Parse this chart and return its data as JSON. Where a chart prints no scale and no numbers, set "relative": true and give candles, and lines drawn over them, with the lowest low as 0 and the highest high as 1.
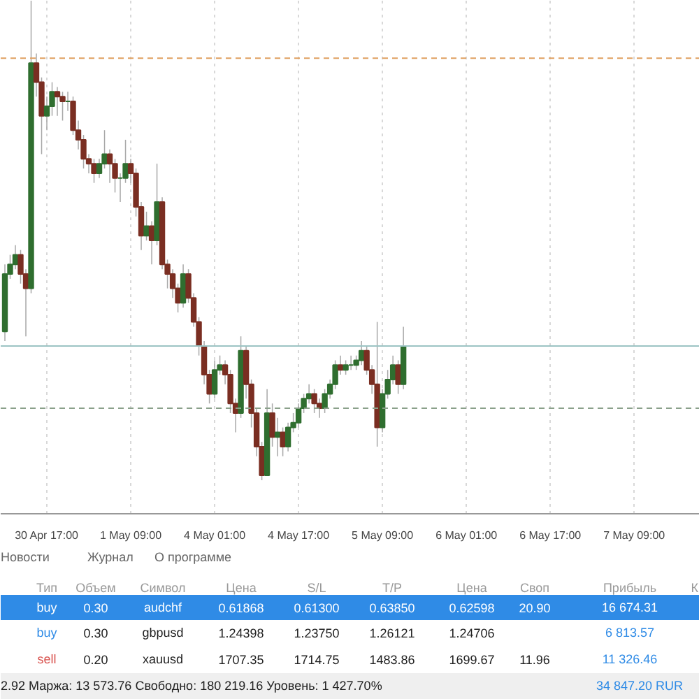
{
  "chart_data": {
    "type": "candlestick",
    "relative": true,
    "categories": [
      null,
      null,
      null,
      null,
      null,
      null,
      null,
      null,
      "30 Apr 17:00",
      null,
      null,
      null,
      null,
      null,
      null,
      null,
      null,
      null,
      null,
      null,
      null,
      null,
      null,
      null,
      "1 May 09:00",
      null,
      null,
      null,
      null,
      null,
      null,
      null,
      null,
      null,
      null,
      null,
      null,
      null,
      null,
      null,
      "4 May 01:00",
      null,
      null,
      null,
      null,
      null,
      null,
      null,
      null,
      null,
      null,
      null,
      null,
      null,
      null,
      null,
      "4 May 17:00",
      null,
      null,
      null,
      null,
      null,
      null,
      null,
      null,
      null,
      null,
      null,
      null,
      null,
      null,
      null,
      "5 May 09:00",
      null,
      null,
      null,
      null,
      null,
      null,
      null,
      null,
      null,
      null,
      null,
      null,
      null,
      null,
      null,
      "6 May 01:00",
      null,
      null,
      null,
      null,
      null,
      null,
      null,
      null,
      null,
      null,
      null,
      null,
      null,
      null,
      null,
      "6 May 17:00",
      null,
      null,
      null,
      null,
      null,
      null,
      null,
      null,
      null,
      null,
      null,
      null,
      null,
      null,
      null,
      "7 May 09:00",
      null,
      null,
      null,
      null,
      null,
      null,
      null,
      null,
      null,
      null,
      null,
      null
    ],
    "ohlc": [
      [
        0.31,
        0.45,
        0.29,
        0.43
      ],
      [
        0.43,
        0.47,
        0.42,
        0.45
      ],
      [
        0.45,
        0.49,
        0.44,
        0.47
      ],
      [
        0.47,
        0.48,
        0.41,
        0.43
      ],
      [
        0.43,
        0.44,
        0.3,
        0.4
      ],
      [
        0.4,
        1.0,
        0.39,
        0.87
      ],
      [
        0.87,
        0.89,
        0.8,
        0.83
      ],
      [
        0.83,
        0.84,
        0.68,
        0.76
      ],
      [
        0.76,
        0.8,
        0.73,
        0.78
      ],
      [
        0.78,
        0.83,
        0.76,
        0.81
      ],
      [
        0.81,
        0.82,
        0.76,
        0.8
      ],
      [
        0.8,
        0.81,
        0.75,
        0.79
      ],
      [
        0.79,
        0.81,
        0.77,
        0.79
      ],
      [
        0.79,
        0.8,
        0.72,
        0.73
      ],
      [
        0.73,
        0.75,
        0.69,
        0.71
      ],
      [
        0.71,
        0.72,
        0.65,
        0.67
      ],
      [
        0.67,
        0.68,
        0.64,
        0.66
      ],
      [
        0.66,
        0.67,
        0.62,
        0.64
      ],
      [
        0.64,
        0.67,
        0.63,
        0.66
      ],
      [
        0.66,
        0.73,
        0.65,
        0.68
      ],
      [
        0.68,
        0.69,
        0.62,
        0.66
      ],
      [
        0.66,
        0.67,
        0.6,
        0.63
      ],
      [
        0.63,
        0.64,
        0.58,
        0.63
      ],
      [
        0.63,
        0.71,
        0.62,
        0.66
      ],
      [
        0.66,
        0.67,
        0.62,
        0.64
      ],
      [
        0.64,
        0.65,
        0.55,
        0.57
      ],
      [
        0.57,
        0.58,
        0.48,
        0.51
      ],
      [
        0.51,
        0.56,
        0.5,
        0.53
      ],
      [
        0.53,
        0.54,
        0.45,
        0.5
      ],
      [
        0.5,
        0.66,
        0.49,
        0.58
      ],
      [
        0.58,
        0.59,
        0.44,
        0.45
      ],
      [
        0.45,
        0.46,
        0.4,
        0.43
      ],
      [
        0.43,
        0.44,
        0.38,
        0.4
      ],
      [
        0.4,
        0.41,
        0.35,
        0.37
      ],
      [
        0.37,
        0.45,
        0.36,
        0.43
      ],
      [
        0.43,
        0.44,
        0.37,
        0.38
      ],
      [
        0.38,
        0.39,
        0.32,
        0.33
      ],
      [
        0.33,
        0.34,
        0.26,
        0.28
      ],
      [
        0.28,
        0.29,
        0.2,
        0.22
      ],
      [
        0.22,
        0.23,
        0.16,
        0.18
      ],
      [
        0.18,
        0.25,
        0.17,
        0.23
      ],
      [
        0.23,
        0.26,
        0.22,
        0.24
      ],
      [
        0.24,
        0.25,
        0.2,
        0.22
      ],
      [
        0.22,
        0.23,
        0.14,
        0.16
      ],
      [
        0.16,
        0.17,
        0.1,
        0.14
      ],
      [
        0.14,
        0.3,
        0.13,
        0.27
      ],
      [
        0.27,
        0.28,
        0.17,
        0.2
      ],
      [
        0.2,
        0.21,
        0.11,
        0.14
      ],
      [
        0.14,
        0.15,
        0.05,
        0.07
      ],
      [
        0.07,
        0.08,
        0.0,
        0.01
      ],
      [
        0.01,
        0.19,
        0.01,
        0.14
      ],
      [
        0.14,
        0.16,
        0.07,
        0.09
      ],
      [
        0.09,
        0.13,
        0.05,
        0.1
      ],
      [
        0.1,
        0.11,
        0.05,
        0.07
      ],
      [
        0.07,
        0.12,
        0.06,
        0.11
      ],
      [
        0.11,
        0.14,
        0.1,
        0.12
      ],
      [
        0.12,
        0.16,
        0.11,
        0.15
      ],
      [
        0.15,
        0.18,
        0.14,
        0.17
      ],
      [
        0.17,
        0.2,
        0.16,
        0.18
      ],
      [
        0.18,
        0.19,
        0.14,
        0.16
      ],
      [
        0.16,
        0.17,
        0.13,
        0.15
      ],
      [
        0.15,
        0.19,
        0.14,
        0.18
      ],
      [
        0.18,
        0.21,
        0.17,
        0.2
      ],
      [
        0.2,
        0.25,
        0.19,
        0.24
      ],
      [
        0.24,
        0.26,
        0.22,
        0.23
      ],
      [
        0.23,
        0.25,
        0.22,
        0.24
      ],
      [
        0.24,
        0.26,
        0.23,
        0.24
      ],
      [
        0.24,
        0.26,
        0.23,
        0.25
      ],
      [
        0.25,
        0.29,
        0.24,
        0.27
      ],
      [
        0.27,
        0.28,
        0.22,
        0.23
      ],
      [
        0.23,
        0.24,
        0.18,
        0.2
      ],
      [
        0.2,
        0.33,
        0.07,
        0.11
      ],
      [
        0.11,
        0.19,
        0.1,
        0.18
      ],
      [
        0.18,
        0.23,
        0.17,
        0.21
      ],
      [
        0.21,
        0.26,
        0.2,
        0.24
      ],
      [
        0.24,
        0.25,
        0.18,
        0.2
      ],
      [
        0.2,
        0.32,
        0.19,
        0.28
      ],
      null,
      null,
      null,
      null,
      null,
      null,
      null,
      null,
      null,
      null,
      null,
      null,
      null,
      null,
      null,
      null,
      null,
      null,
      null,
      null,
      null,
      null,
      null,
      null,
      null,
      null,
      null,
      null,
      null,
      null,
      null,
      null,
      null,
      null,
      null,
      null,
      null,
      null,
      null,
      null,
      null,
      null,
      null,
      null,
      null,
      null,
      null,
      null,
      null,
      null,
      null,
      null,
      null,
      null,
      null,
      null
    ],
    "grid": "x",
    "ref_lines": [
      {
        "axis": "y",
        "value": 0.88,
        "color": "#e0a060",
        "line_style": "dashed"
      },
      {
        "axis": "y",
        "value": 0.28,
        "color": "#9cc4c4",
        "line_style": "solid"
      },
      {
        "axis": "y",
        "value": 0.15,
        "color": "#8aa08a",
        "line_style": "dashed"
      }
    ],
    "annotations": [
      "Новости",
      "Журнал",
      "О программе",
      "Тип",
      "Объем",
      "Символ",
      "Цена",
      "S/L",
      "T/P",
      "Цена",
      "Своп",
      "Прибыль",
      "К",
      "buy",
      "0.30",
      "audchf",
      "0.61868",
      "0.61300",
      "0.63850",
      "0.62598",
      "20.90",
      "16 674.31",
      "buy",
      "0.30",
      "gbpusd",
      "1.24398",
      "1.23750",
      "1.26121",
      "1.24706",
      "6 813.57",
      "sell",
      "0.20",
      "xauusd",
      "1707.35",
      "1714.75",
      "1483.86",
      "1699.67",
      "11.96",
      "11 326.46",
      "2.92 Маржа: 13 573.76 Свободно: 180 219.16 Уровень: 1 427.70%",
      "34 847.20 RUR"
    ]
  }
}
